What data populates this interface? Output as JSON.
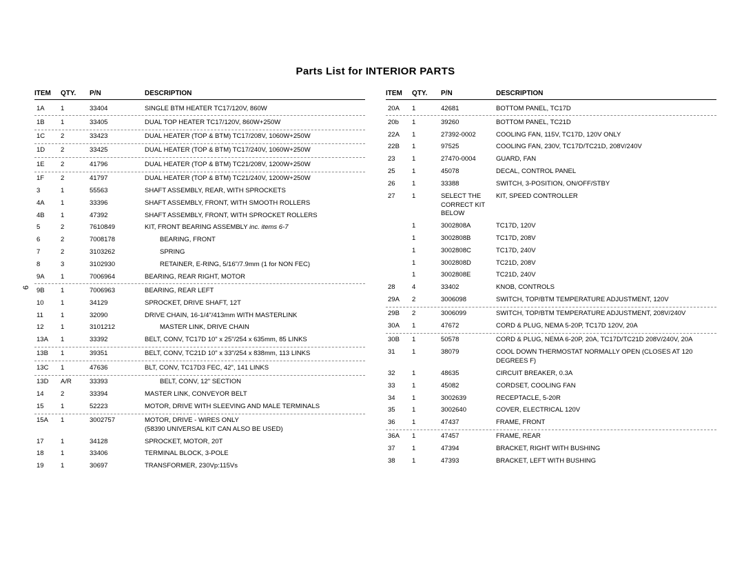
{
  "title": "Parts List for INTERIOR PARTS",
  "pageNumber": "6",
  "headers": {
    "item": "ITEM",
    "qty": "QTY.",
    "pn": "P/N",
    "desc": "DESCRIPTION"
  },
  "leftRows": [
    {
      "item": "1A",
      "qty": "1",
      "pn": "33404",
      "desc": "SINGLE BTM HEATER TC17/120V, 860W",
      "dashed": true
    },
    {
      "item": "1B",
      "qty": "1",
      "pn": "33405",
      "desc": "DUAL TOP HEATER TC17/120V, 860W+250W",
      "dashed": true
    },
    {
      "item": "1C",
      "qty": "2",
      "pn": "33423",
      "desc": "DUAL HEATER (TOP & BTM) TC17/208V, 1060W+250W",
      "dashed": true
    },
    {
      "item": "1D",
      "qty": "2",
      "pn": "33425",
      "desc": "DUAL HEATER (TOP & BTM) TC17/240V, 1060W+250W",
      "dashed": true
    },
    {
      "item": "1E",
      "qty": "2",
      "pn": "41796",
      "desc": "DUAL HEATER (TOP & BTM) TC21/208V, 1200W+250W",
      "dashed": true
    },
    {
      "item": "1F",
      "qty": "2",
      "pn": "41797",
      "desc": "DUAL HEATER (TOP & BTM) TC21/240V, 1200W+250W"
    },
    {
      "item": "3",
      "qty": "1",
      "pn": "55563",
      "desc": "SHAFT ASSEMBLY, REAR, WITH SPROCKETS"
    },
    {
      "item": "4A",
      "qty": "1",
      "pn": "33396",
      "desc": "SHAFT ASSEMBLY, FRONT, WITH SMOOTH ROLLERS"
    },
    {
      "item": "4B",
      "qty": "1",
      "pn": "47392",
      "desc": "SHAFT ASSEMBLY, FRONT, WITH SPROCKET ROLLERS"
    },
    {
      "item": "5",
      "qty": "2",
      "pn": "7610849",
      "descHtml": "KIT, FRONT BEARING ASSEMBLY <em>inc. items 6-7</em>"
    },
    {
      "item": "6",
      "qty": "2",
      "pn": "7008178",
      "desc": "BEARING, FRONT",
      "indent": true
    },
    {
      "item": "7",
      "qty": "2",
      "pn": "3103262",
      "desc": "SPRING",
      "indent": true
    },
    {
      "item": "8",
      "qty": "3",
      "pn": "3102930",
      "desc": "RETAINER, E-RING, 5/16\"/7.9mm (1 for NON FEC)",
      "indent": true
    },
    {
      "item": "9A",
      "qty": "1",
      "pn": "7006964",
      "desc": "BEARING, REAR RIGHT, MOTOR",
      "dashed": true
    },
    {
      "item": "9B",
      "qty": "1",
      "pn": "7006963",
      "desc": "BEARING, REAR LEFT"
    },
    {
      "item": "10",
      "qty": "1",
      "pn": "34129",
      "desc": "SPROCKET, DRIVE SHAFT, 12T"
    },
    {
      "item": "11",
      "qty": "1",
      "pn": "32090",
      "desc": "DRIVE CHAIN, 16-1/4\"/413mm WITH MASTERLINK"
    },
    {
      "item": "12",
      "qty": "1",
      "pn": "3101212",
      "desc": "MASTER LINK, DRIVE CHAIN",
      "indent": true
    },
    {
      "item": "13A",
      "qty": "1",
      "pn": "33392",
      "desc": "BELT, CONV, TC17D 10\" x 25\"/254 x 635mm, 85 LINKS",
      "dashed": true
    },
    {
      "item": "13B",
      "qty": "1",
      "pn": "39351",
      "desc": "BELT, CONV, TC21D 10\" x 33\"/254 x 838mm, 113 LINKS",
      "dashed": true
    },
    {
      "item": "13C",
      "qty": "1",
      "pn": "47636",
      "desc": "BLT, CONV, TC17D3 FEC, 42\", 141 LINKS",
      "dashed": true
    },
    {
      "item": "13D",
      "qty": "A/R",
      "pn": "33393",
      "desc": "BELT, CONV, 12\" SECTION",
      "indent": true
    },
    {
      "item": "14",
      "qty": "2",
      "pn": "33394",
      "desc": "MASTER LINK, CONVEYOR BELT"
    },
    {
      "item": "15",
      "qty": "1",
      "pn": "52223",
      "desc": "MOTOR, DRIVE WITH SLEEVING AND MALE TERMINALS",
      "dashed": true
    },
    {
      "item": "15A",
      "qty": "1",
      "pn": "3002757",
      "desc": "MOTOR, DRIVE - WIRES ONLY\n(58390 UNIVERSAL KIT CAN ALSO BE USED)"
    },
    {
      "item": "17",
      "qty": "1",
      "pn": "34128",
      "desc": "SPROCKET, MOTOR, 20T"
    },
    {
      "item": "18",
      "qty": "1",
      "pn": "33406",
      "desc": "TERMINAL BLOCK, 3-POLE"
    },
    {
      "item": "19",
      "qty": "1",
      "pn": "30697",
      "desc": "TRANSFORMER, 230Vp:115Vs"
    }
  ],
  "rightRows": [
    {
      "item": "20A",
      "qty": "1",
      "pn": "42681",
      "desc": "BOTTOM PANEL, TC17D",
      "dashed": true
    },
    {
      "item": "20b",
      "qty": "1",
      "pn": "39260",
      "desc": "BOTTOM PANEL, TC21D"
    },
    {
      "item": "22A",
      "qty": "1",
      "pn": "27392-0002",
      "desc": "COOLING FAN, 115V, TC17D, 120V ONLY"
    },
    {
      "item": "22B",
      "qty": "1",
      "pn": "97525",
      "desc": "COOLING FAN, 230V, TC17D/TC21D, 208V/240V"
    },
    {
      "item": "23",
      "qty": "1",
      "pn": "27470-0004",
      "desc": "GUARD, FAN"
    },
    {
      "item": "25",
      "qty": "1",
      "pn": "45078",
      "desc": "DECAL, CONTROL PANEL"
    },
    {
      "item": "26",
      "qty": "1",
      "pn": "33388",
      "desc": "SWITCH, 3-POSITION, ON/OFF/STBY"
    },
    {
      "item": "27",
      "qty": "1",
      "pn": "SELECT THE CORRECT KIT BELOW",
      "desc": "KIT, SPEED CONTROLLER",
      "pnMulti": true
    },
    {
      "item": "",
      "qty": "1",
      "pn": "3002808A",
      "desc": "TC17D, 120V"
    },
    {
      "item": "",
      "qty": "1",
      "pn": "3002808B",
      "desc": "TC17D, 208V"
    },
    {
      "item": "",
      "qty": "1",
      "pn": "3002808C",
      "desc": "TC17D, 240V"
    },
    {
      "item": "",
      "qty": "1",
      "pn": "3002808D",
      "desc": "TC21D, 208V"
    },
    {
      "item": "",
      "qty": "1",
      "pn": "3002808E",
      "desc": "TC21D, 240V"
    },
    {
      "item": "28",
      "qty": "4",
      "pn": "33402",
      "desc": "KNOB, CONTROLS"
    },
    {
      "item": "29A",
      "qty": "2",
      "pn": "3006098",
      "desc": "SWITCH, TOP/BTM TEMPERATURE ADJUSTMENT, 120V",
      "dashed": true
    },
    {
      "item": "29B",
      "qty": "2",
      "pn": "3006099",
      "desc": "SWITCH, TOP/BTM TEMPERATURE ADJUSTMENT, 208V/240V"
    },
    {
      "item": "30A",
      "qty": "1",
      "pn": "47672",
      "desc": "CORD & PLUG, NEMA 5-20P, TC17D 120V, 20A",
      "dashed": true
    },
    {
      "item": "30B",
      "qty": "1",
      "pn": "50578",
      "desc": "CORD & PLUG, NEMA 6-20P, 20A, TC17D/TC21D 208V/240V, 20A"
    },
    {
      "item": "31",
      "qty": "1",
      "pn": "38079",
      "desc": "COOL DOWN THERMOSTAT NORMALLY OPEN (CLOSES AT 120 DEGREES F)"
    },
    {
      "item": "32",
      "qty": "1",
      "pn": "48635",
      "desc": "CIRCUIT BREAKER, 0.3A"
    },
    {
      "item": "33",
      "qty": "1",
      "pn": "45082",
      "desc": "CORDSET, COOLING FAN"
    },
    {
      "item": "34",
      "qty": "1",
      "pn": "3002639",
      "desc": "RECEPTACLE, 5-20R"
    },
    {
      "item": "35",
      "qty": "1",
      "pn": "3002640",
      "desc": "COVER, ELECTRICAL 120V"
    },
    {
      "item": "36",
      "qty": "1",
      "pn": "47437",
      "desc": "FRAME, FRONT",
      "dashed": true
    },
    {
      "item": "36A",
      "qty": "1",
      "pn": "47457",
      "desc": "FRAME, REAR"
    },
    {
      "item": "37",
      "qty": "1",
      "pn": "47394",
      "desc": "BRACKET, RIGHT WITH BUSHING"
    },
    {
      "item": "38",
      "qty": "1",
      "pn": "47393",
      "desc": "BRACKET, LEFT WITH BUSHING"
    }
  ]
}
